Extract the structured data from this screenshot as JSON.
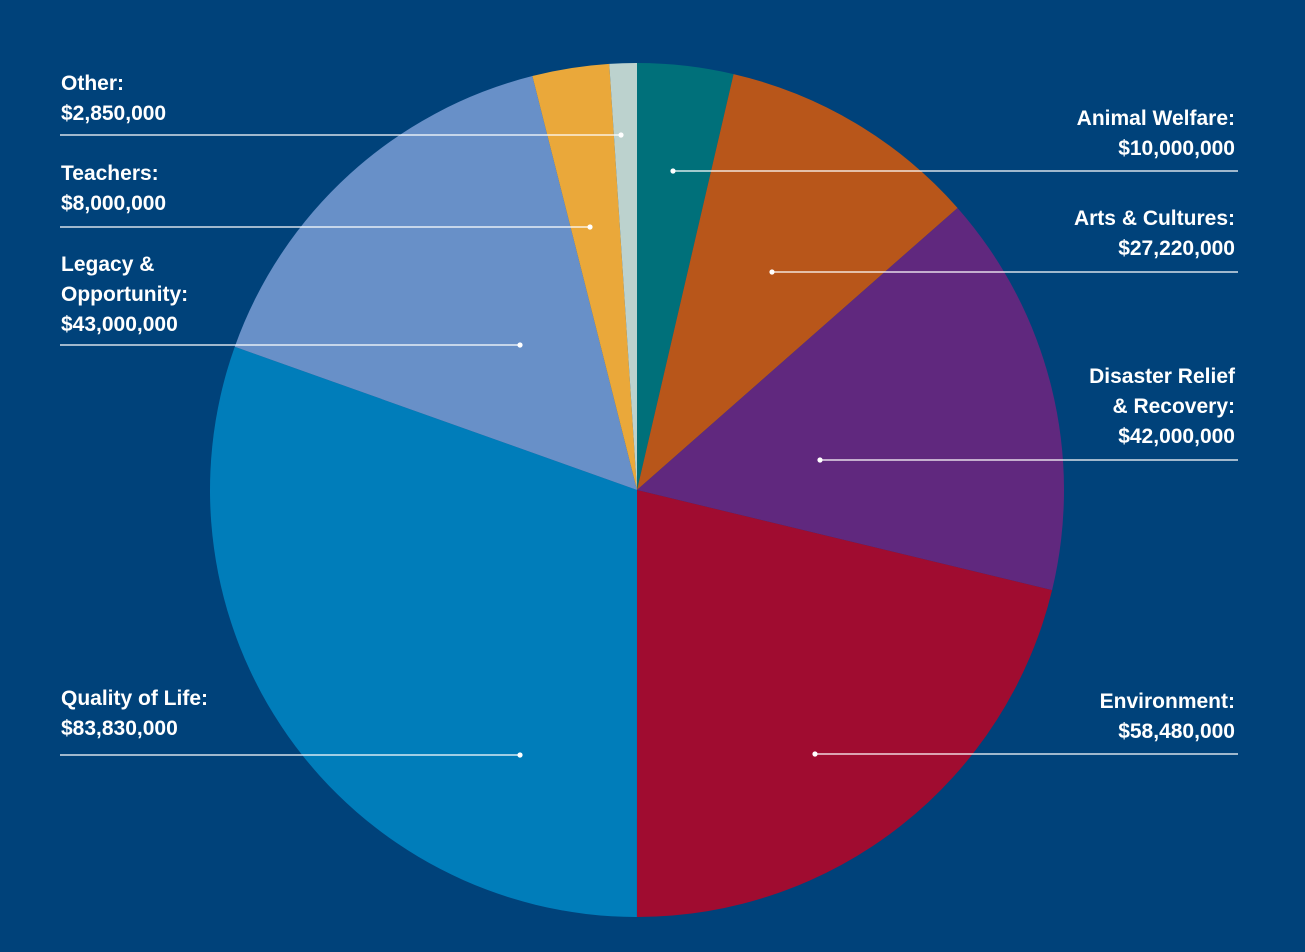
{
  "chart_data": {
    "type": "pie",
    "title": "",
    "start_angle_deg": 0,
    "direction": "clockwise",
    "background": "#00427a",
    "slices": [
      {
        "name": "Animal Welfare",
        "label_lines": [
          "Animal Welfare:"
        ],
        "value": 10000000,
        "value_text": "$10,000,000",
        "color": "#00707a",
        "label_side": "right"
      },
      {
        "name": "Arts & Cultures",
        "label_lines": [
          "Arts & Cultures:"
        ],
        "value": 27220000,
        "value_text": "$27,220,000",
        "color": "#b8561a",
        "label_side": "right"
      },
      {
        "name": "Disaster Relief & Recovery",
        "label_lines": [
          "Disaster Relief",
          "& Recovery:"
        ],
        "value": 42000000,
        "value_text": "$42,000,000",
        "color": "#60287e",
        "label_side": "right"
      },
      {
        "name": "Environment",
        "label_lines": [
          "Environment:"
        ],
        "value": 58480000,
        "value_text": "$58,480,000",
        "color": "#a00c30",
        "label_side": "right"
      },
      {
        "name": "Quality of Life",
        "label_lines": [
          "Quality of Life:"
        ],
        "value": 83830000,
        "value_text": "$83,830,000",
        "color": "#007dba",
        "label_side": "left"
      },
      {
        "name": "Legacy & Opportunity",
        "label_lines": [
          "Legacy &",
          "Opportunity:"
        ],
        "value": 43000000,
        "value_text": "$43,000,000",
        "color": "#6890c8",
        "label_side": "left"
      },
      {
        "name": "Teachers",
        "label_lines": [
          "Teachers:"
        ],
        "value": 8000000,
        "value_text": "$8,000,000",
        "color": "#eaa83a",
        "label_side": "left"
      },
      {
        "name": "Other",
        "label_lines": [
          "Other:"
        ],
        "value": 2850000,
        "value_text": "$2,850,000",
        "color": "#bcd2ce",
        "label_side": "left"
      }
    ]
  }
}
